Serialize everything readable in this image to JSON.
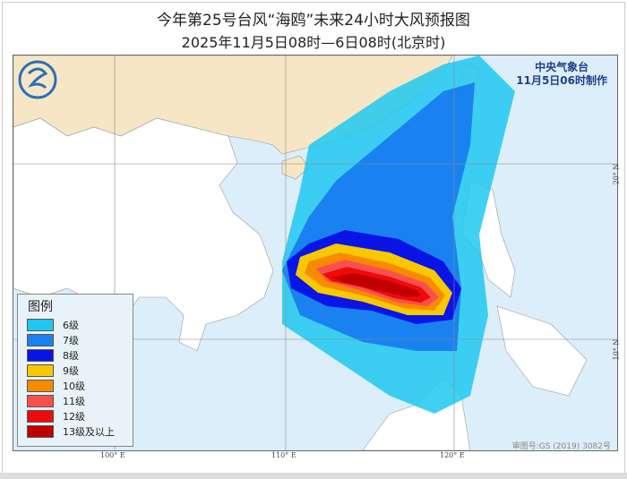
{
  "title": "今年第25号台风“海鸥”未来24小时大风预报图",
  "subtitle": "2025年11月5日08时—6日08时(北京时)",
  "agency": {
    "name": "中央气象台",
    "issued": "11月5日06时制作"
  },
  "legend": {
    "title": "图例",
    "items": [
      {
        "label": "6级",
        "color": "#1ec8f0"
      },
      {
        "label": "7级",
        "color": "#1a82f0"
      },
      {
        "label": "8级",
        "color": "#0a14e6"
      },
      {
        "label": "9级",
        "color": "#f8c800"
      },
      {
        "label": "10级",
        "color": "#f88a00"
      },
      {
        "label": "11级",
        "color": "#f85050"
      },
      {
        "label": "12级",
        "color": "#f00a0a"
      },
      {
        "label": "13级及以上",
        "color": "#c00000"
      }
    ]
  },
  "axes": {
    "lon": [
      "100° E",
      "110° E",
      "120° E"
    ],
    "lat": [
      "20° N",
      "10° N"
    ]
  },
  "approval": "审图号:GS (2019) 3082号",
  "colors": {
    "sea": "#dceefa",
    "china_land": "#f6e6c6",
    "other_land": "#ffffff"
  }
}
